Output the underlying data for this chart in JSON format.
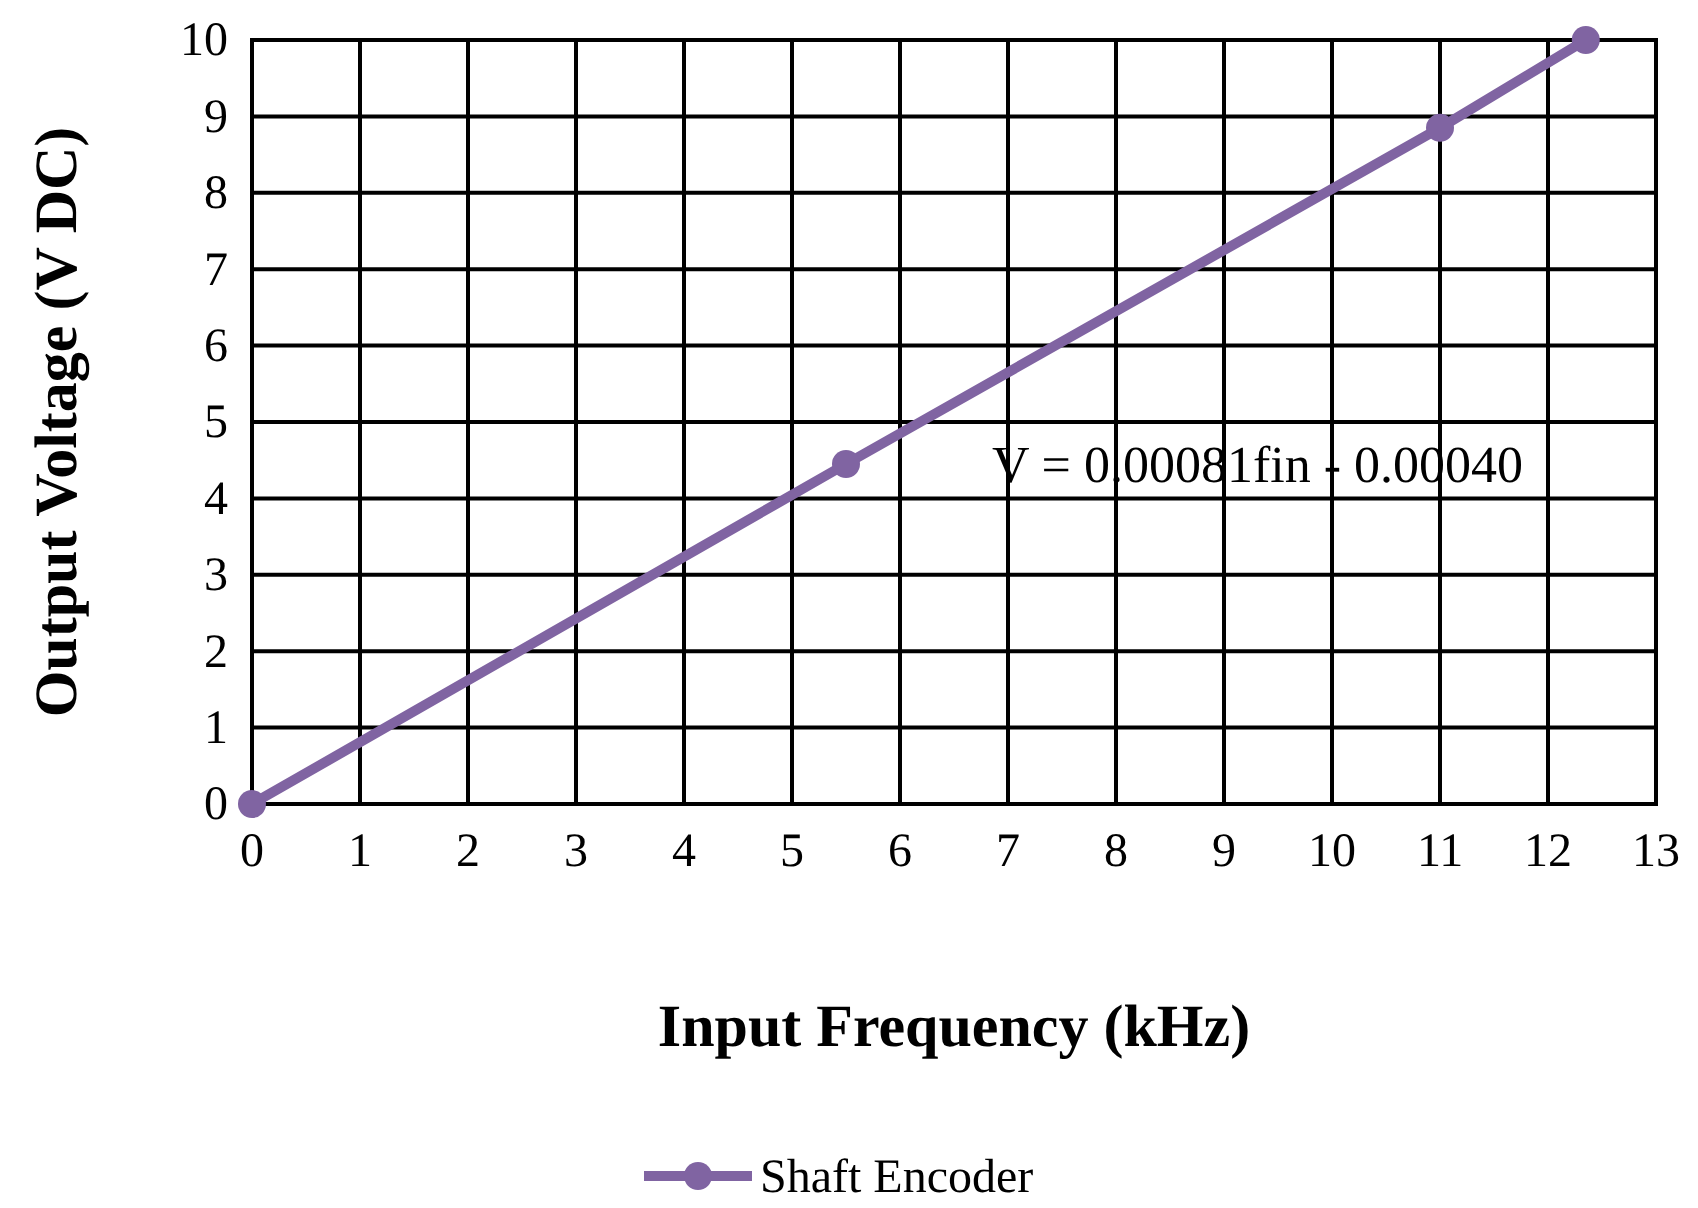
{
  "chart_data": {
    "type": "line",
    "xlabel": "Input Frequency (kHz)",
    "ylabel": "Output Voltage (V DC)",
    "xlim": [
      0,
      13
    ],
    "xticks": [
      0,
      1,
      2,
      3,
      4,
      5,
      6,
      7,
      8,
      9,
      10,
      11,
      12,
      13
    ],
    "ylim": [
      0,
      10
    ],
    "yticks": [
      0,
      1,
      2,
      3,
      4,
      5,
      6,
      7,
      8,
      9,
      10
    ],
    "grid": true,
    "legend": "bottom",
    "marker": "circle",
    "line_style": "solid",
    "annotations": [
      "V = 0.00081fin - 0.00040"
    ],
    "series": [
      {
        "name": "Shaft Encoder",
        "color": "#8064a2",
        "x": [
          0,
          5.5,
          11,
          12.35
        ],
        "values": [
          0,
          4.45,
          8.85,
          10
        ]
      }
    ]
  }
}
